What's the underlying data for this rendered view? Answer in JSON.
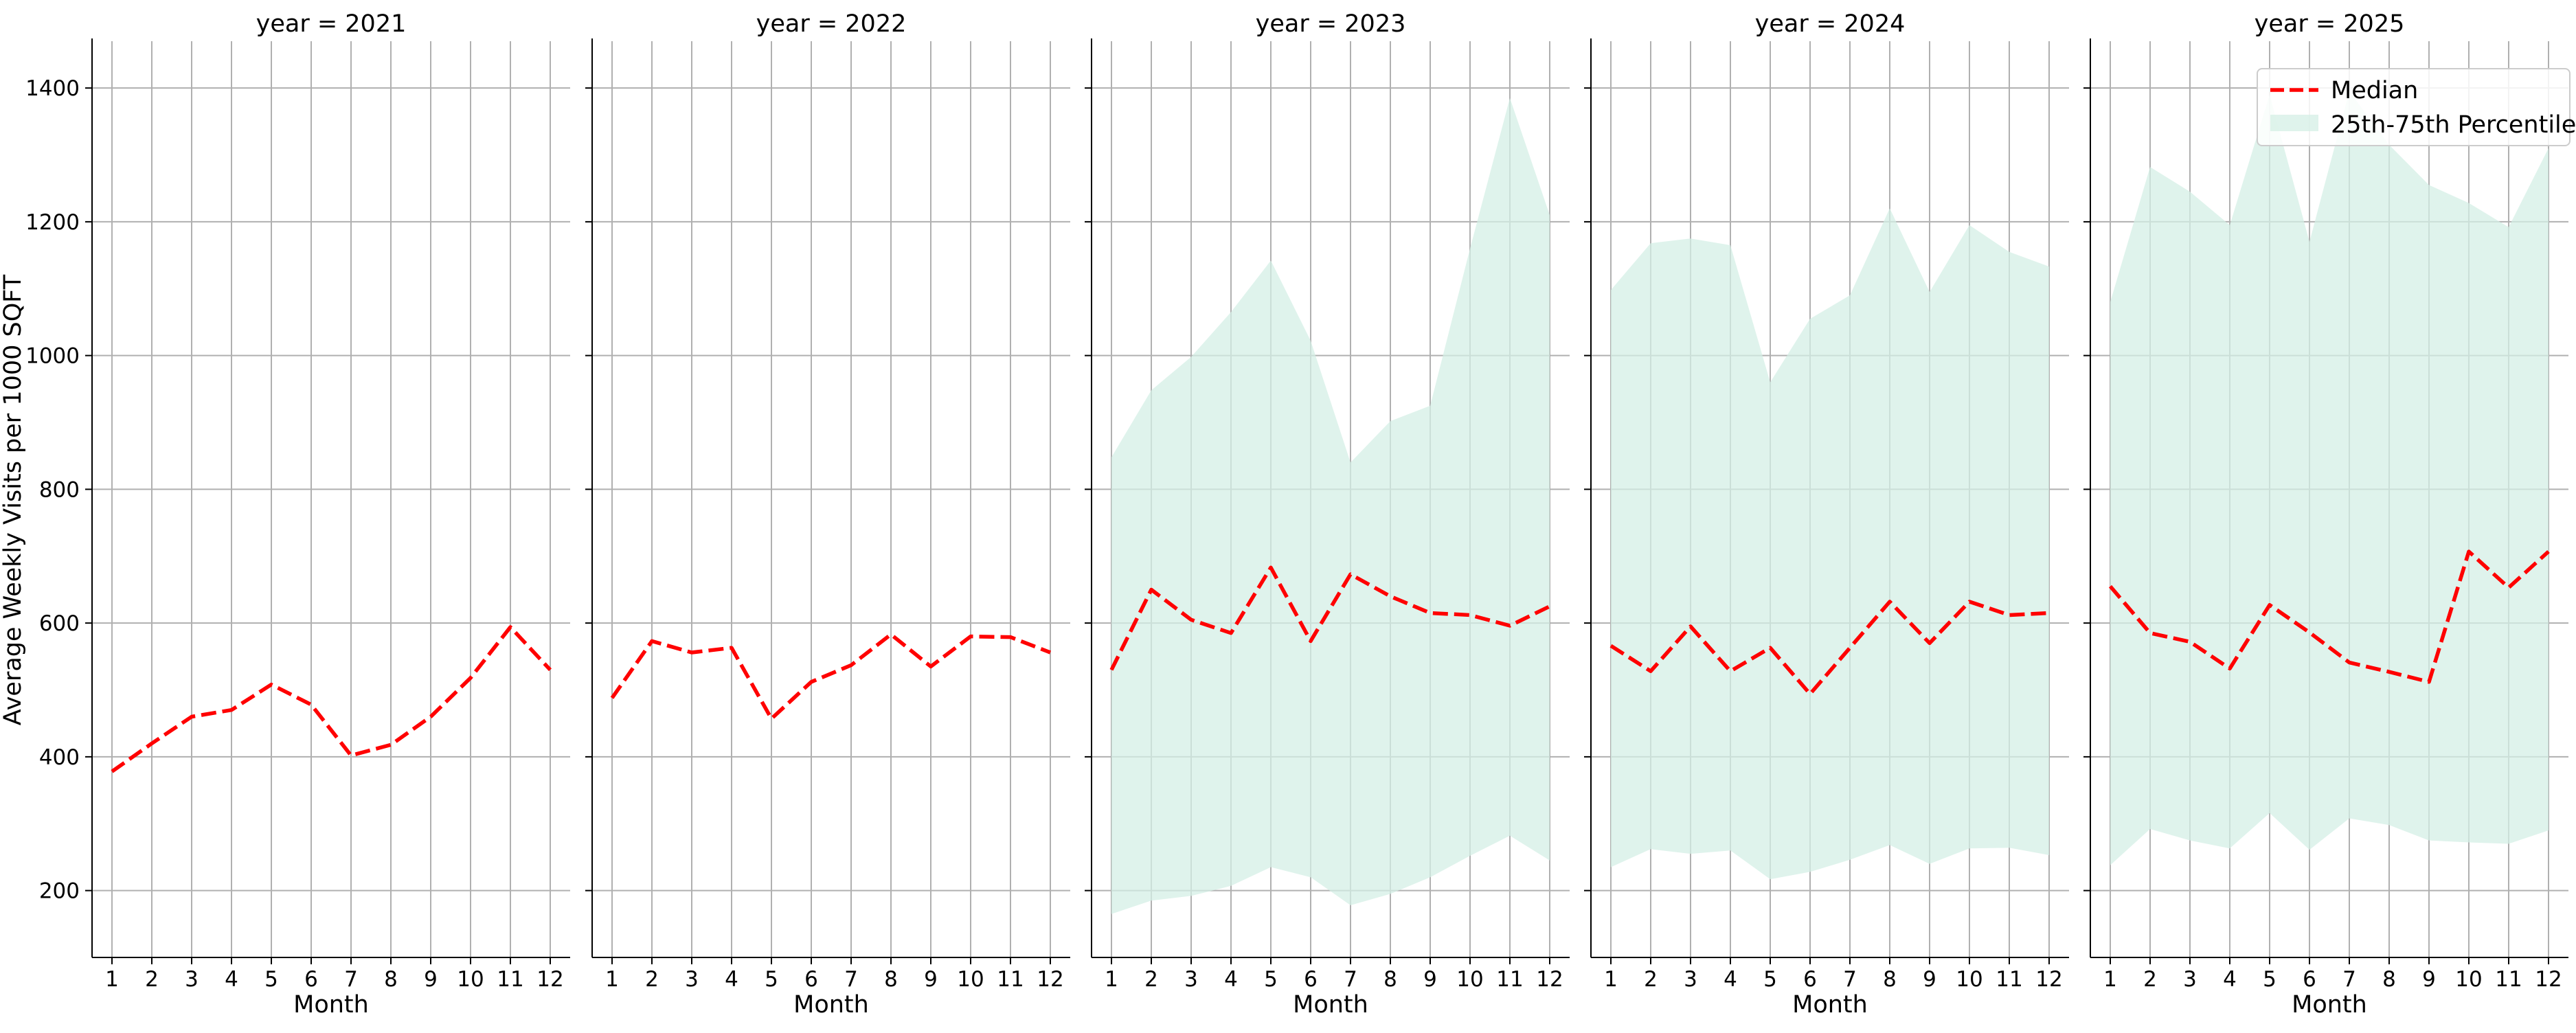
{
  "chart_data": {
    "type": "line",
    "ylabel": "Average Weekly Visits per 1000 SQFT",
    "xlabel": "Month",
    "x": [
      1,
      2,
      3,
      4,
      5,
      6,
      7,
      8,
      9,
      10,
      11,
      12
    ],
    "ylim": [
      100,
      1470
    ],
    "xlim": [
      0.5,
      12.5
    ],
    "yticks": [
      200,
      400,
      600,
      800,
      1000,
      1200,
      1400
    ],
    "grid": true,
    "legend": {
      "placement": "top-right",
      "entries": [
        "Median",
        "25th-75th Percentile"
      ]
    },
    "colors": {
      "median": "#ff0000",
      "band": "#d4efe6",
      "grid": "#b0b0b0",
      "axis": "#000000"
    },
    "panels": [
      {
        "title": "year = 2021",
        "median": [
          378,
          420,
          460,
          470,
          508,
          478,
          402,
          418,
          460,
          518,
          594,
          530
        ],
        "p25": null,
        "p75": null
      },
      {
        "title": "year = 2022",
        "median": [
          488,
          573,
          556,
          563,
          457,
          512,
          537,
          583,
          535,
          580,
          579,
          556
        ],
        "p25": null,
        "p75": null
      },
      {
        "title": "year = 2023",
        "median": [
          530,
          650,
          605,
          585,
          683,
          573,
          673,
          640,
          615,
          612,
          596,
          625
        ],
        "p25": [
          165,
          185,
          192,
          207,
          235,
          220,
          178,
          195,
          220,
          252,
          282,
          245
        ],
        "p75": [
          848,
          948,
          998,
          1065,
          1142,
          1022,
          840,
          902,
          925,
          1160,
          1385,
          1210
        ]
      },
      {
        "title": "year = 2024",
        "median": [
          566,
          528,
          595,
          528,
          563,
          494,
          563,
          632,
          570,
          632,
          612,
          615
        ],
        "p25": [
          235,
          262,
          255,
          260,
          217,
          228,
          246,
          268,
          240,
          263,
          264,
          253
        ],
        "p75": [
          1098,
          1168,
          1175,
          1165,
          960,
          1055,
          1090,
          1220,
          1095,
          1195,
          1155,
          1133
        ]
      },
      {
        "title": "year = 2025",
        "median": [
          655,
          585,
          572,
          532,
          627,
          586,
          541,
          527,
          512,
          707,
          653,
          707
        ],
        "p25": [
          238,
          292,
          275,
          263,
          316,
          261,
          308,
          298,
          275,
          272,
          270,
          290
        ],
        "p75": [
          1080,
          1282,
          1245,
          1195,
          1390,
          1170,
          1395,
          1315,
          1255,
          1228,
          1192,
          1310
        ]
      }
    ]
  }
}
